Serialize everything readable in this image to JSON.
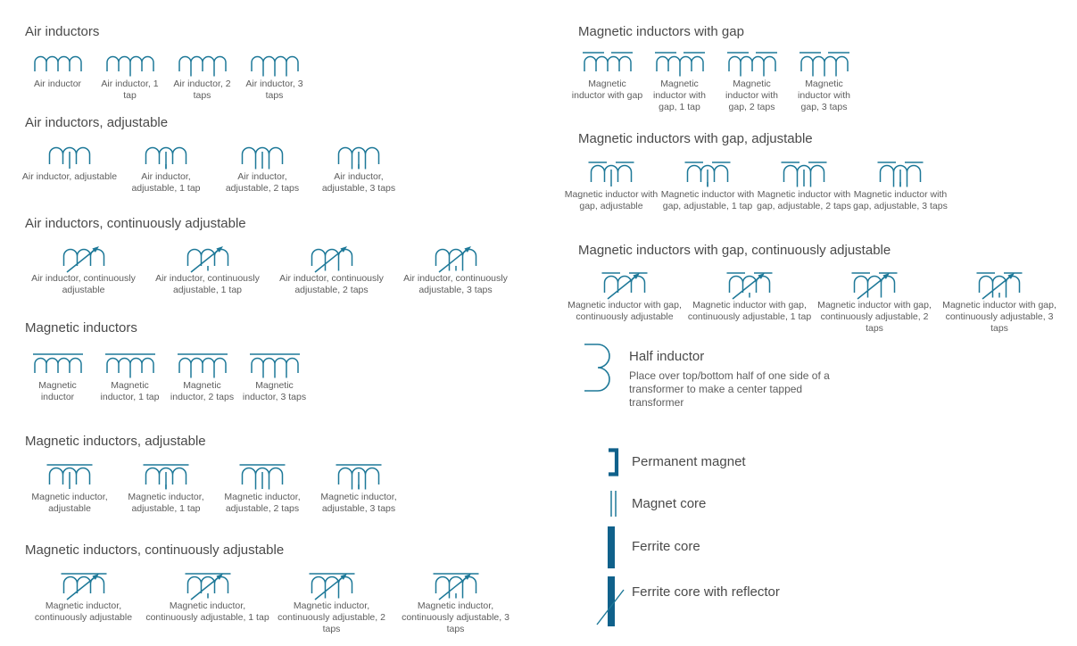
{
  "colors": {
    "symbol": "#1d7898",
    "symbol_thick": "#10618b",
    "heading_text": "#4a4a4a",
    "label_text": "#5d5d5d",
    "background": "#ffffff"
  },
  "sections_left": [
    {
      "title": "Air inductors",
      "items": [
        {
          "label": "Air inductor",
          "symbol": "air-inductor"
        },
        {
          "label": "Air inductor, 1 tap",
          "symbol": "air-inductor-1-tap"
        },
        {
          "label": "Air inductor, 2 taps",
          "symbol": "air-inductor-2-taps"
        },
        {
          "label": "Air inductor, 3 taps",
          "symbol": "air-inductor-3-taps"
        }
      ]
    },
    {
      "title": "Air inductors, adjustable",
      "items": [
        {
          "label": "Air inductor, adjustable",
          "symbol": "air-inductor-adjustable"
        },
        {
          "label": "Air inductor, adjustable, 1 tap",
          "symbol": "air-inductor-adjustable-1-tap"
        },
        {
          "label": "Air inductor, adjustable, 2 taps",
          "symbol": "air-inductor-adjustable-2-taps"
        },
        {
          "label": "Air inductor, adjustable, 3 taps",
          "symbol": "air-inductor-adjustable-3-taps"
        }
      ]
    },
    {
      "title": "Air inductors, continuously adjustable",
      "items": [
        {
          "label": "Air inductor, continuously adjustable",
          "symbol": "air-inductor-continuously-adjustable"
        },
        {
          "label": "Air inductor, continuously adjustable, 1 tap",
          "symbol": "air-inductor-continuously-adjustable-1-tap"
        },
        {
          "label": "Air inductor, continuously adjustable, 2 taps",
          "symbol": "air-inductor-continuously-adjustable-2-taps"
        },
        {
          "label": "Air inductor, continuously adjustable, 3 taps",
          "symbol": "air-inductor-continuously-adjustable-3-taps"
        }
      ]
    },
    {
      "title": "Magnetic inductors",
      "items": [
        {
          "label": "Magnetic inductor",
          "symbol": "magnetic-inductor"
        },
        {
          "label": "Magnetic inductor, 1 tap",
          "symbol": "magnetic-inductor-1-tap"
        },
        {
          "label": "Magnetic inductor, 2 taps",
          "symbol": "magnetic-inductor-2-taps"
        },
        {
          "label": "Magnetic inductor, 3 taps",
          "symbol": "magnetic-inductor-3-taps"
        }
      ]
    },
    {
      "title": "Magnetic inductors, adjustable",
      "items": [
        {
          "label": "Magnetic inductor, adjustable",
          "symbol": "magnetic-inductor-adjustable"
        },
        {
          "label": "Magnetic inductor, adjustable, 1 tap",
          "symbol": "magnetic-inductor-adjustable-1-tap"
        },
        {
          "label": "Magnetic inductor, adjustable, 2 taps",
          "symbol": "magnetic-inductor-adjustable-2-taps"
        },
        {
          "label": "Magnetic inductor, adjustable, 3 taps",
          "symbol": "magnetic-inductor-adjustable-3-taps"
        }
      ]
    },
    {
      "title": "Magnetic inductors, continuously adjustable",
      "items": [
        {
          "label": "Magnetic inductor, continuously adjustable",
          "symbol": "magnetic-inductor-continuously-adjustable"
        },
        {
          "label": "Magnetic inductor, continuously adjustable, 1 tap",
          "symbol": "magnetic-inductor-continuously-adjustable-1-tap"
        },
        {
          "label": "Magnetic inductor, continuously adjustable, 2 taps",
          "symbol": "magnetic-inductor-continuously-adjustable-2-taps"
        },
        {
          "label": "Magnetic inductor, continuously adjustable, 3 taps",
          "symbol": "magnetic-inductor-continuously-adjustable-3-taps"
        }
      ]
    }
  ],
  "sections_right": [
    {
      "title": "Magnetic inductors with gap",
      "items": [
        {
          "label": "Magnetic inductor with gap",
          "symbol": "magnetic-inductor-with-gap"
        },
        {
          "label": "Magnetic inductor with gap, 1 tap",
          "symbol": "magnetic-inductor-with-gap-1-tap"
        },
        {
          "label": "Magnetic inductor with gap, 2 taps",
          "symbol": "magnetic-inductor-with-gap-2-taps"
        },
        {
          "label": "Magnetic inductor with gap, 3 taps",
          "symbol": "magnetic-inductor-with-gap-3-taps"
        }
      ]
    },
    {
      "title": "Magnetic inductors with gap, adjustable",
      "items": [
        {
          "label": "Magnetic inductor with gap, adjustable",
          "symbol": "magnetic-inductor-with-gap-adjustable"
        },
        {
          "label": "Magnetic inductor with gap, adjustable, 1 tap",
          "symbol": "magnetic-inductor-with-gap-adjustable-1-tap"
        },
        {
          "label": "Magnetic inductor with gap, adjustable, 2 taps",
          "symbol": "magnetic-inductor-with-gap-adjustable-2-taps"
        },
        {
          "label": "Magnetic inductor with gap, adjustable, 3 taps",
          "symbol": "magnetic-inductor-with-gap-adjustable-3-taps"
        }
      ]
    },
    {
      "title": "Magnetic inductors with gap, continuously adjustable",
      "items": [
        {
          "label": "Magnetic inductor with gap, continuously adjustable",
          "symbol": "magnetic-inductor-with-gap-continuously-adjustable"
        },
        {
          "label": "Magnetic inductor with gap, continuously adjustable, 1 tap",
          "symbol": "magnetic-inductor-with-gap-continuously-adjustable-1-tap"
        },
        {
          "label": "Magnetic inductor with gap, continuously adjustable, 2 taps",
          "symbol": "magnetic-inductor-with-gap-continuously-adjustable-2-taps"
        },
        {
          "label": "Magnetic inductor with gap, continuously adjustable, 3 taps",
          "symbol": "magnetic-inductor-with-gap-continuously-adjustable-3-taps"
        }
      ]
    }
  ],
  "half_inductor": {
    "title": "Half inductor",
    "description": "Place over top/bottom half of one side of a transformer to make a center tapped transformer",
    "symbol": "half-inductor"
  },
  "legend": [
    {
      "label": "Permanent magnet",
      "symbol": "permanent-magnet"
    },
    {
      "label": "Magnet core",
      "symbol": "magnet-core"
    },
    {
      "label": "Ferrite core",
      "symbol": "ferrite-core"
    },
    {
      "label": "Ferrite core with reflector",
      "symbol": "ferrite-core-with-reflector"
    }
  ]
}
